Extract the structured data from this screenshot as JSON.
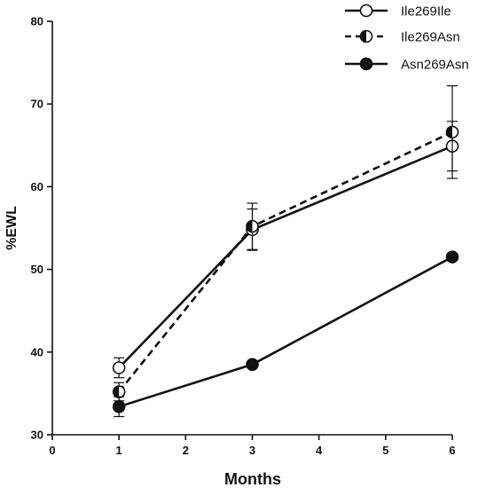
{
  "chart_data": {
    "type": "line",
    "xlabel": "Months",
    "ylabel": "%EWL",
    "xlim": [
      0,
      6
    ],
    "ylim": [
      30,
      80
    ],
    "xticks": [
      0,
      1,
      2,
      3,
      4,
      5,
      6
    ],
    "yticks": [
      30,
      40,
      50,
      60,
      70,
      80
    ],
    "grid": false,
    "legend_position": "top-right",
    "series": [
      {
        "name": "Ile269Ile",
        "marker": "open-circle",
        "line_style": "solid",
        "color": "#111111",
        "x": [
          1,
          3,
          6
        ],
        "y": [
          38.1,
          54.8,
          64.9
        ],
        "error": [
          1.2,
          2.5,
          3.0
        ]
      },
      {
        "name": "Ile269Asn",
        "marker": "half-filled-circle",
        "line_style": "dashed",
        "color": "#111111",
        "x": [
          1,
          3,
          6
        ],
        "y": [
          35.2,
          55.2,
          66.6
        ],
        "error": [
          1.1,
          2.8,
          5.6
        ]
      },
      {
        "name": "Asn269Asn",
        "marker": "filled-circle",
        "line_style": "solid",
        "color": "#111111",
        "x": [
          1,
          3,
          6
        ],
        "y": [
          33.4,
          38.5,
          51.5
        ],
        "error": [
          1.2,
          0,
          0
        ]
      }
    ]
  }
}
